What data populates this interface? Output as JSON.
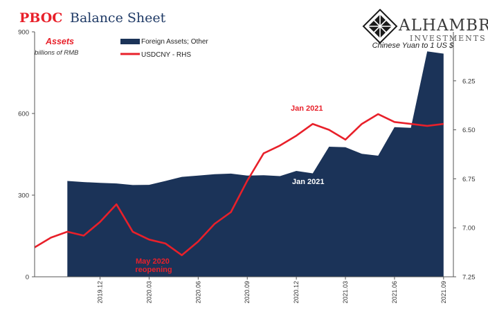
{
  "title": {
    "prefix": "PBOC",
    "rest": "Balance Sheet",
    "prefix_color": "#e8202a",
    "rest_color": "#1f3a66"
  },
  "logo": {
    "name": "ALHAMBRA",
    "sub": "INVESTMENTS",
    "icon": "diamond-lattice-icon"
  },
  "chart_data": {
    "type": "area",
    "left_axis": {
      "title": "Assets",
      "subtitle": "billions of RMB",
      "ticks": [
        0,
        300,
        600,
        900
      ],
      "range": [
        0,
        900
      ]
    },
    "right_axis": {
      "title": "Chinese Yuan to 1 US $",
      "ticks": [
        "6.25",
        "6.50",
        "6.75",
        "7.00",
        "7.25"
      ],
      "range": [
        7.25,
        6.0
      ],
      "inverted": true
    },
    "x_ticks": [
      "2019.12",
      "2020.03",
      "2020.06",
      "2020.09",
      "2020.12",
      "2021.03",
      "2021.06",
      "2021.09"
    ],
    "series": [
      {
        "name": "Foreign Assets; Other",
        "type": "area",
        "color": "#1b3358",
        "axis": "left",
        "x": [
          "2019.10",
          "2019.11",
          "2019.12",
          "2020.01",
          "2020.02",
          "2020.03",
          "2020.04",
          "2020.05",
          "2020.06",
          "2020.07",
          "2020.08",
          "2020.09",
          "2020.10",
          "2020.11",
          "2020.12",
          "2021.01",
          "2021.02",
          "2021.03",
          "2021.04",
          "2021.05",
          "2021.06",
          "2021.07",
          "2021.08",
          "2021.09"
        ],
        "values": [
          352,
          348,
          345,
          343,
          337,
          338,
          352,
          367,
          372,
          377,
          379,
          372,
          373,
          370,
          389,
          380,
          478,
          476,
          452,
          445,
          550,
          547,
          828,
          820
        ]
      },
      {
        "name": "USDCNY - RHS",
        "type": "line",
        "color": "#e8202a",
        "axis": "right",
        "x": [
          "2019.08",
          "2019.09",
          "2019.10",
          "2019.11",
          "2019.12",
          "2020.01",
          "2020.02",
          "2020.03",
          "2020.04",
          "2020.05",
          "2020.06",
          "2020.07",
          "2020.08",
          "2020.09",
          "2020.10",
          "2020.11",
          "2020.12",
          "2021.01",
          "2021.02",
          "2021.03",
          "2021.04",
          "2021.05",
          "2021.06",
          "2021.07",
          "2021.08",
          "2021.09"
        ],
        "values": [
          7.1,
          7.05,
          7.02,
          7.04,
          6.97,
          6.88,
          7.02,
          7.06,
          7.08,
          7.14,
          7.07,
          6.98,
          6.92,
          6.76,
          6.62,
          6.58,
          6.53,
          6.47,
          6.5,
          6.55,
          6.47,
          6.42,
          6.46,
          6.47,
          6.48,
          6.47
        ]
      }
    ],
    "annotations": [
      {
        "text": "Jan 2021",
        "series": "USDCNY - RHS",
        "color": "#e8202a"
      },
      {
        "text": "Jan 2021",
        "series": "Foreign Assets; Other",
        "color": "#ffffff"
      },
      {
        "text": [
          "May 2020",
          "reopening"
        ],
        "series": "USDCNY - RHS",
        "color": "#e8202a"
      }
    ],
    "legend": "top-left",
    "grid": false
  }
}
